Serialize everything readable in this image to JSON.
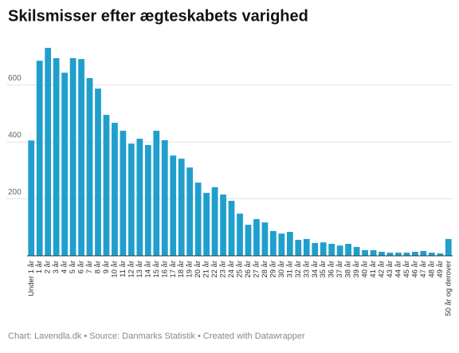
{
  "chart_data": {
    "type": "bar",
    "title": "Skilsmisser efter ægteskabets varighed",
    "source": "Chart: Lavendla.dk • Source: Danmarks Statistik • Created with Datawrapper",
    "categories": [
      "Under 1 år",
      "1 år",
      "2 år",
      "3 år",
      "4 år",
      "5 år",
      "6 år",
      "7 år",
      "8 år",
      "9 år",
      "10 år",
      "11 år",
      "12 år",
      "13 år",
      "14 år",
      "15 år",
      "16 år",
      "17 år",
      "18 år",
      "19 år",
      "20 år",
      "21 år",
      "22 år",
      "23 år",
      "24 år",
      "25 år",
      "26 år",
      "27 år",
      "28 år",
      "29 år",
      "30 år",
      "31 år",
      "32 år",
      "33 år",
      "34 år",
      "35 år",
      "36 år",
      "37 år",
      "38 år",
      "39 år",
      "40 år",
      "41 år",
      "42 år",
      "43 år",
      "44 år",
      "45 år",
      "46 år",
      "47 år",
      "48 år",
      "49 år",
      "50 år og derover"
    ],
    "values": [
      405,
      685,
      730,
      694,
      643,
      694,
      691,
      624,
      587,
      495,
      467,
      439,
      394,
      411,
      389,
      439,
      406,
      352,
      341,
      310,
      257,
      221,
      241,
      215,
      193,
      148,
      109,
      129,
      117,
      87,
      78,
      84,
      56,
      59,
      45,
      47,
      42,
      36,
      42,
      31,
      20,
      20,
      14,
      11,
      11,
      11,
      14,
      17,
      11,
      8,
      59
    ],
    "color": "#1f9fcc",
    "ylim": [
      0,
      750
    ],
    "yticks": [
      200,
      400,
      600
    ],
    "grid": true
  }
}
